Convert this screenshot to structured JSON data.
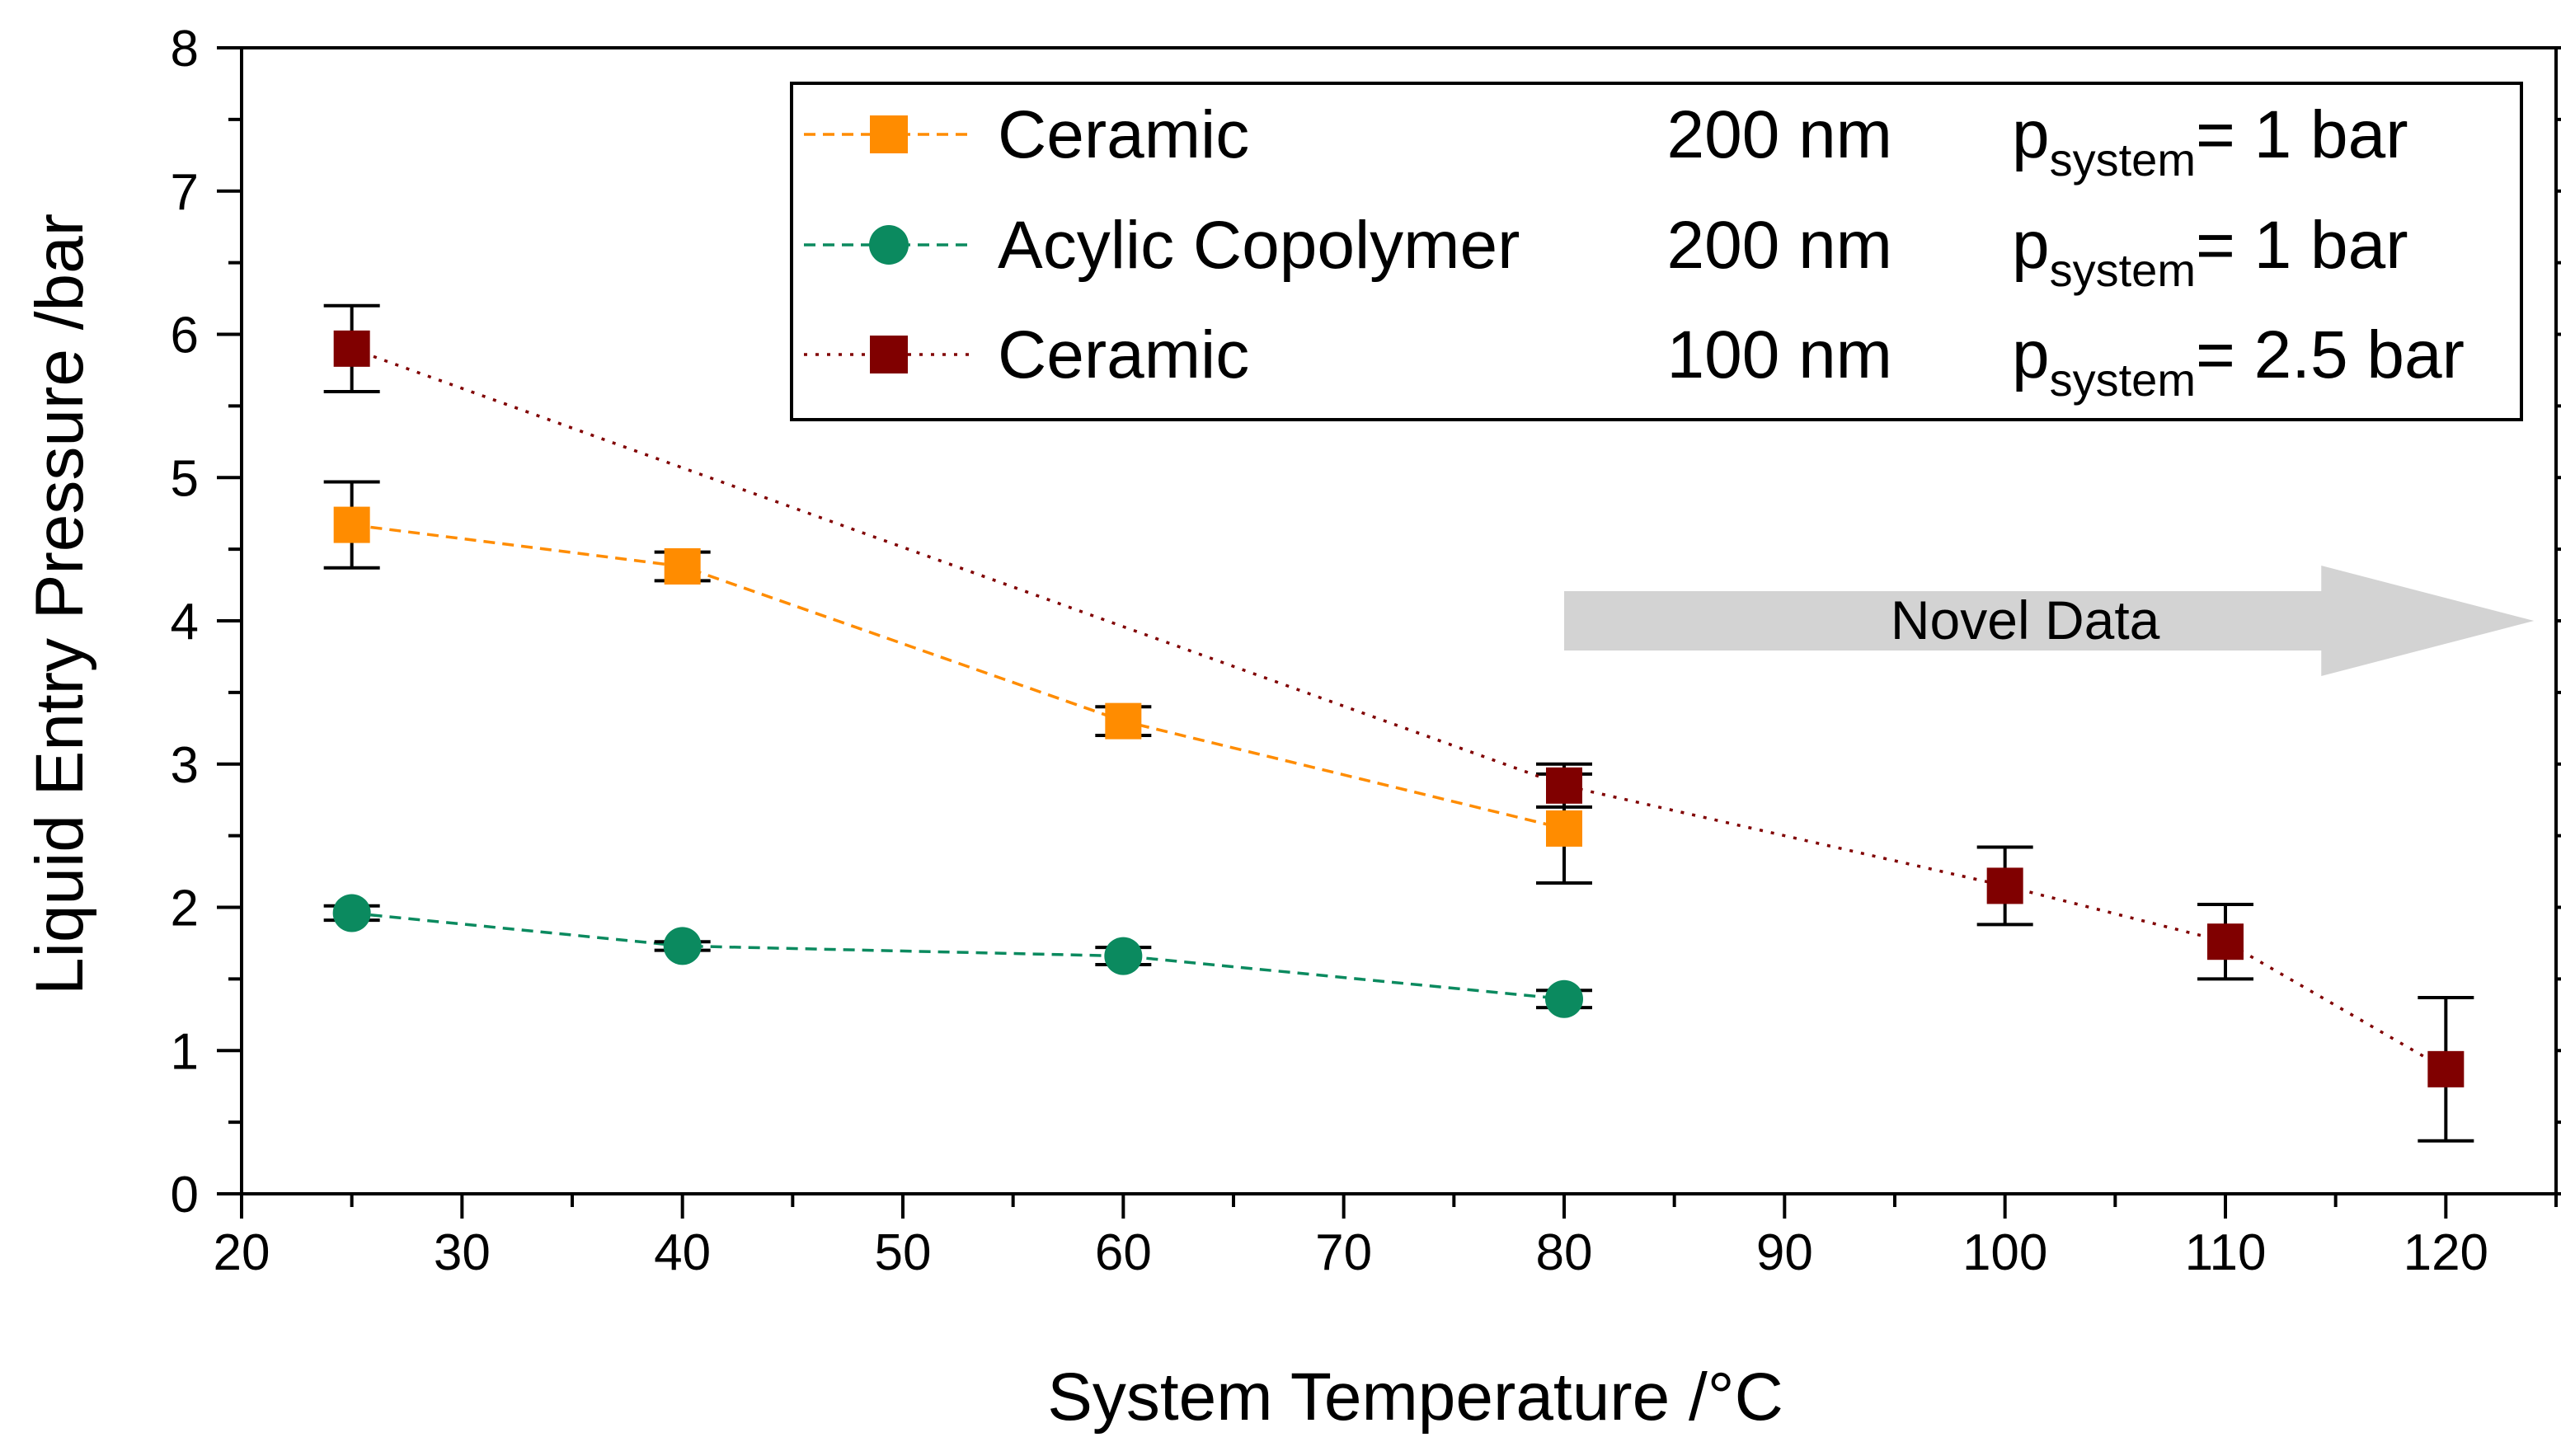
{
  "chart_data": {
    "type": "line",
    "xlabel": "System Temperature /°C",
    "ylabel": "Liquid Entry Pressure /bar",
    "xlim": [
      20,
      125
    ],
    "ylim": [
      0,
      8
    ],
    "xticks": [
      20,
      30,
      40,
      50,
      60,
      70,
      80,
      90,
      100,
      110,
      120
    ],
    "yticks": [
      0,
      1,
      2,
      3,
      4,
      5,
      6,
      7,
      8
    ],
    "grid": false,
    "legend_position": "top-right",
    "series": [
      {
        "name": "Ceramic",
        "pore_size": "200 nm",
        "pressure_label": "p",
        "pressure_sub": "system",
        "pressure_value": "= 1 bar",
        "marker": "square",
        "color": "#ff8c00",
        "line_style": "dashed",
        "x": [
          25,
          40,
          60,
          80
        ],
        "y": [
          4.67,
          4.38,
          3.3,
          2.55
        ],
        "err": [
          0.3,
          0.1,
          0.1,
          0.38
        ]
      },
      {
        "name": "Acylic Copolymer",
        "pore_size": "200 nm",
        "pressure_label": "p",
        "pressure_sub": "system",
        "pressure_value": "= 1 bar",
        "marker": "circle",
        "color": "#0b8a5f",
        "line_style": "dashed",
        "x": [
          25,
          40,
          60,
          80
        ],
        "y": [
          1.96,
          1.73,
          1.66,
          1.36
        ],
        "err": [
          0.05,
          0.03,
          0.06,
          0.06
        ]
      },
      {
        "name": "Ceramic",
        "pore_size": "100 nm",
        "pressure_label": "p",
        "pressure_sub": "system",
        "pressure_value": "= 2.5 bar",
        "marker": "square",
        "color": "#800000",
        "line_style": "dotted",
        "x": [
          25,
          80,
          100,
          110,
          120
        ],
        "y": [
          5.9,
          2.85,
          2.15,
          1.76,
          0.87
        ],
        "err": [
          0.3,
          0.15,
          0.27,
          0.26,
          0.5
        ]
      }
    ],
    "annotations": [
      {
        "text": "Novel Data",
        "from_x": 80,
        "to_x": 124,
        "y": 4.0,
        "color": "#d3d3d3"
      }
    ]
  }
}
